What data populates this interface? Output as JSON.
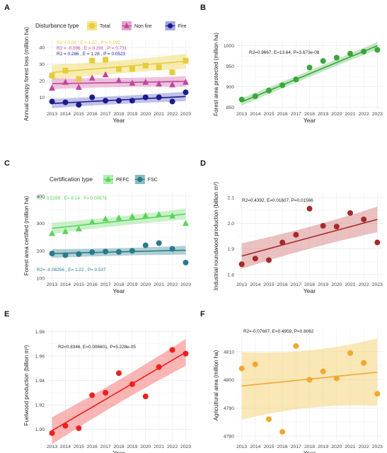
{
  "chart_data": [
    {
      "panel": "A",
      "type": "scatter",
      "xlabel": "Year",
      "ylabel": "Annual canopy forest loss (million ha)",
      "x": [
        2013,
        2014,
        2015,
        2016,
        2017,
        2018,
        2019,
        2020,
        2021,
        2022,
        2023
      ],
      "xlim": [
        2012.6,
        2023.4
      ],
      "ylim": [
        3,
        45
      ],
      "yticks": [
        10,
        20,
        30,
        40
      ],
      "legend": {
        "title": "Disturbance type",
        "position": "top"
      },
      "series": [
        {
          "name": "Total",
          "marker": "square",
          "color": "#e6cc3c",
          "band_color": "#f0df72",
          "values": [
            23,
            26,
            21,
            32,
            32.5,
            27,
            27,
            29,
            28,
            25,
            32
          ],
          "fit": [
            24.9,
            31.6
          ],
          "band_halfwidth": [
            4.5,
            4.5
          ],
          "stats": "R2 = 0.06 , E = 1.57 , P = 0.592"
        },
        {
          "name": "Non fire",
          "marker": "triangle",
          "color": "#c1479a",
          "band_color": "#de8fc4",
          "values": [
            15.5,
            19,
            16,
            21.5,
            23.5,
            20,
            18.5,
            19,
            18,
            17.5,
            19
          ],
          "fit": [
            18.2,
            19.5
          ],
          "band_halfwidth": [
            3.2,
            3.2
          ],
          "stats": "R2 = -0.096 , E = 0.291 , P = 0.731"
        },
        {
          "name": "Fire",
          "marker": "circle",
          "color": "#1c1b8c",
          "band_color": "#8c8ed9",
          "values": [
            7.5,
            7,
            5.5,
            10,
            8,
            8,
            8,
            10,
            10,
            7.5,
            13
          ],
          "fit": [
            6.3,
            10.5
          ],
          "band_halfwidth": [
            2.8,
            2.8
          ],
          "stats": "R2 = 0.286 , E = 1.28 , P = 0.0523"
        }
      ]
    },
    {
      "panel": "B",
      "type": "scatter",
      "xlabel": "Year",
      "ylabel": "Forest area protected (million ha)",
      "x": [
        2013,
        2014,
        2015,
        2016,
        2017,
        2018,
        2019,
        2020,
        2021,
        2022,
        2023
      ],
      "xlim": [
        2012.6,
        2023.4
      ],
      "ylim": [
        846,
        1015
      ],
      "yticks": [
        850,
        900,
        950,
        1000
      ],
      "series": [
        {
          "name": "",
          "marker": "circle",
          "color": "#3aa53a",
          "band_color": "#8ed38e",
          "values": [
            869,
            877,
            891,
            904,
            918,
            947,
            963,
            971,
            981,
            986,
            990
          ],
          "fit": [
            863.4,
            1000.2
          ],
          "band_halfwidth": [
            9,
            9
          ],
          "stats": "R2=0.9667, E=13.64, P=3.673e-08"
        }
      ]
    },
    {
      "panel": "C",
      "type": "scatter",
      "xlabel": "Year",
      "ylabel": "Forest area certified (million ha)",
      "x": [
        2013,
        2014,
        2015,
        2016,
        2017,
        2018,
        2019,
        2020,
        2021,
        2022,
        2023
      ],
      "xlim": [
        2012.6,
        2023.4
      ],
      "ylim": [
        95,
        415
      ],
      "yticks": [
        100,
        200,
        300,
        400
      ],
      "legend": {
        "title": "Certification type",
        "position": "top"
      },
      "series": [
        {
          "name": "PEFC",
          "marker": "triangle",
          "color": "#5bd35b",
          "band_color": "#9ee89e",
          "values": [
            263,
            270,
            280,
            305,
            316,
            320,
            325,
            328,
            332,
            327,
            300
          ],
          "fit": [
            282,
            334
          ],
          "band_halfwidth": [
            20,
            20
          ],
          "stats": "R2= 0.5289 , E= 8.14 , P= 0.00676"
        },
        {
          "name": "FSC",
          "marker": "circle",
          "color": "#2a7a8a",
          "band_color": "#6ea9b3",
          "values": [
            190,
            184,
            188,
            195,
            197,
            196,
            200,
            220,
            228,
            207,
            157
          ],
          "fit": [
            190,
            202
          ],
          "band_halfwidth": [
            16,
            16
          ],
          "stats": "R2= -0.06256 , E= 1.22 , P= 0.537"
        }
      ]
    },
    {
      "panel": "D",
      "type": "scatter",
      "xlabel": "Year",
      "ylabel": "Industrial roundwood production (billion m³)",
      "x": [
        2013,
        2014,
        2015,
        2016,
        2017,
        2018,
        2019,
        2020,
        2021,
        2022,
        2023
      ],
      "xlim": [
        2012.6,
        2023.4
      ],
      "ylim": [
        1.78,
        2.12
      ],
      "yticks": [
        1.8,
        1.9,
        2.0,
        2.1
      ],
      "yticklabels": [
        "1.8",
        "1.9",
        "2.0",
        "2.1"
      ],
      "series": [
        {
          "name": "",
          "marker": "circle",
          "color": "#a52a2a",
          "band_color": "#d98c8c",
          "values": [
            1.84,
            1.862,
            1.856,
            1.925,
            1.955,
            2.057,
            1.99,
            1.987,
            2.04,
            2.015,
            1.925
          ],
          "fit": [
            1.872,
            2.015
          ],
          "band_halfwidth": [
            0.05,
            0.05
          ],
          "stats": "R2=0.4392, E=0.01607, P=0.01566"
        }
      ]
    },
    {
      "panel": "E",
      "type": "scatter",
      "xlabel": "Year",
      "ylabel": "Fuelwood production (billion m³)",
      "x": [
        2013,
        2014,
        2015,
        2016,
        2017,
        2018,
        2019,
        2020,
        2021,
        2022,
        2023
      ],
      "xlim": [
        2012.6,
        2023.4
      ],
      "ylim": [
        1.89,
        1.982
      ],
      "yticks": [
        1.9,
        1.92,
        1.94,
        1.96,
        1.98
      ],
      "yticklabels": [
        "1.90",
        "1.92",
        "1.94",
        "1.96",
        "1.98"
      ],
      "series": [
        {
          "name": "",
          "marker": "circle",
          "color": "#ee1f1f",
          "band_color": "#f57878",
          "values": [
            1.897,
            1.903,
            1.901,
            1.928,
            1.93,
            1.946,
            1.937,
            1.927,
            1.951,
            1.965,
            1.962
          ],
          "fit": [
            1.899,
            1.963
          ],
          "band_halfwidth": [
            0.011,
            0.011
          ],
          "stats": "R2=0.8346, E=0.006601, P=5.228e-05"
        }
      ]
    },
    {
      "panel": "F",
      "type": "scatter",
      "xlabel": "Year",
      "ylabel": "Agricultural area (million ha)",
      "x": [
        2013,
        2014,
        2015,
        2016,
        2017,
        2018,
        2019,
        2020,
        2021,
        2022,
        2023
      ],
      "xlim": [
        2012.6,
        2023.4
      ],
      "ylim": [
        4778,
        4818
      ],
      "yticks": [
        4780,
        4790,
        4800,
        4810
      ],
      "series": [
        {
          "name": "",
          "marker": "circle",
          "color": "#f0a830",
          "band_color": "#f6d47a",
          "values": [
            4804,
            4805.5,
            4786,
            4781.5,
            4812,
            4800,
            4803,
            4800.5,
            4809.5,
            4806,
            4795
          ],
          "fit": [
            4797.8,
            4802.7
          ],
          "band_halfwidth": [
            12,
            12
          ],
          "stats": "R2=-0.07697, E=0.4959, P=0.8062"
        }
      ]
    }
  ]
}
